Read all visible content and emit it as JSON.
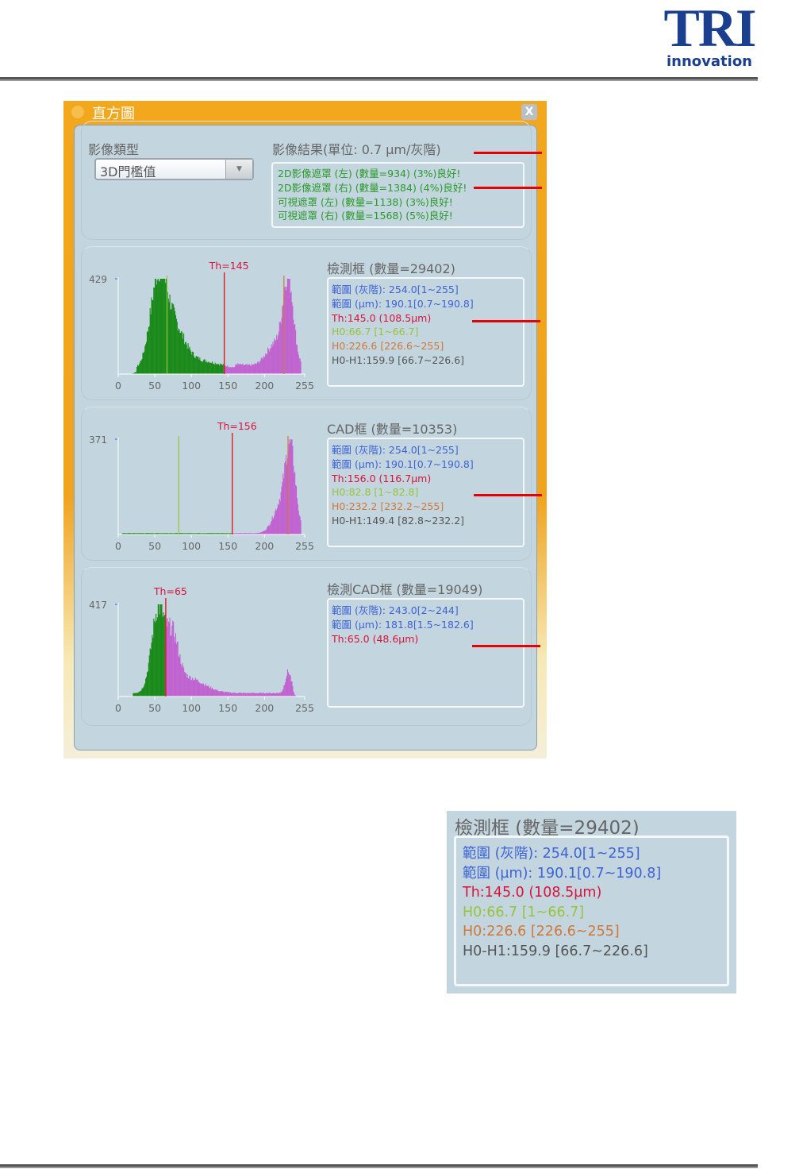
{
  "logo": {
    "text": "TRI",
    "sub": "innovation",
    "color": "#1b3f8f"
  },
  "dialog": {
    "title": "直方圖",
    "close_label": "X",
    "image_type_label": "影像類型",
    "image_type_value": "3D門檻值",
    "result_label": "影像結果(單位: 0.7 µm/灰階)",
    "result_lines": [
      "2D影像遮罩 (左) (數量=934) (3%)良好!",
      "2D影像遮罩 (右) (數量=1384) (4%)良好!",
      "可視遮罩 (左) (數量=1138) (3%)良好!",
      "可視遮罩 (右) (數量=1568) (5%)良好!"
    ]
  },
  "colors": {
    "blue": "#3d63d6",
    "red": "#d8143c",
    "lime": "#97c43a",
    "orange": "#d2773a",
    "gray": "#555",
    "green_fill": "#1a8a1a",
    "purple_fill": "#c063d0",
    "result_green": "#2a9a2a"
  },
  "chart_data": [
    {
      "type": "bar",
      "title": "檢測框 (數量=29402)",
      "ymax_label": "429",
      "xticks": [
        "0",
        "50",
        "100",
        "150",
        "200",
        "255"
      ],
      "xlim": [
        0,
        255
      ],
      "threshold": 145,
      "threshold_label": "Th=145",
      "h0": 66.7,
      "h1": 226.6,
      "info": [
        {
          "t": "範圍 (灰階): 254.0[1~255]",
          "c": "blue"
        },
        {
          "t": "範圍 (µm): 190.1[0.7~190.8]",
          "c": "blue"
        },
        {
          "t": "Th:145.0 (108.5µm)",
          "c": "red"
        },
        {
          "t": "H0:66.7 [1~66.7]",
          "c": "lime"
        },
        {
          "t": "H0:226.6 [226.6~255]",
          "c": "orange"
        },
        {
          "t": "H0-H1:159.9 [66.7~226.6]",
          "c": "gray"
        }
      ]
    },
    {
      "type": "bar",
      "title": "CAD框 (數量=10353)",
      "ymax_label": "371",
      "xticks": [
        "0",
        "50",
        "100",
        "150",
        "200",
        "255"
      ],
      "xlim": [
        0,
        255
      ],
      "threshold": 156,
      "threshold_label": "Th=156",
      "h0": 82.8,
      "h1": 232.2,
      "info": [
        {
          "t": "範圍 (灰階): 254.0[1~255]",
          "c": "blue"
        },
        {
          "t": "範圍 (µm): 190.1[0.7~190.8]",
          "c": "blue"
        },
        {
          "t": "Th:156.0 (116.7µm)",
          "c": "red"
        },
        {
          "t": "H0:82.8 [1~82.8]",
          "c": "lime"
        },
        {
          "t": "H0:232.2 [232.2~255]",
          "c": "orange"
        },
        {
          "t": "H0-H1:149.4 [82.8~232.2]",
          "c": "gray"
        }
      ]
    },
    {
      "type": "bar",
      "title": "檢測CAD框 (數量=19049)",
      "ymax_label": "417",
      "xticks": [
        "0",
        "50",
        "100",
        "150",
        "200",
        "255"
      ],
      "xlim": [
        0,
        255
      ],
      "threshold": 65,
      "threshold_label": "Th=65",
      "info": [
        {
          "t": "範圍 (灰階): 243.0[2~244]",
          "c": "blue"
        },
        {
          "t": "範圍 (µm): 181.8[1.5~182.6]",
          "c": "blue"
        },
        {
          "t": "Th:65.0 (48.6µm)",
          "c": "red"
        }
      ]
    }
  ],
  "inset": {
    "title": "檢測框 (數量=29402)",
    "info": [
      {
        "t": "範圍 (灰階): 254.0[1~255]",
        "c": "blue"
      },
      {
        "t": "範圍 (µm): 190.1[0.7~190.8]",
        "c": "blue"
      },
      {
        "t": "Th:145.0 (108.5µm)",
        "c": "red"
      },
      {
        "t": "H0:66.7 [1~66.7]",
        "c": "lime"
      },
      {
        "t": "H0:226.6 [226.6~255]",
        "c": "orange"
      },
      {
        "t": "H0-H1:159.9 [66.7~226.6]",
        "c": "gray"
      }
    ]
  }
}
